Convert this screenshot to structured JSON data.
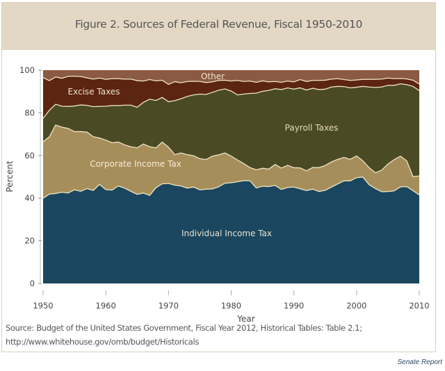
{
  "chart_data": {
    "type": "area",
    "stacked": true,
    "title": "Figure 2. Sources of Federal Revenue, Fiscal 1950-2010",
    "xlabel": "Year",
    "ylabel": "Percent",
    "xlim": [
      1950,
      2010
    ],
    "ylim": [
      0,
      100
    ],
    "xticks": [
      "1950",
      "1960",
      "1970",
      "1980",
      "1990",
      "2000",
      "2010"
    ],
    "yticks": [
      "0",
      "20",
      "40",
      "60",
      "80",
      "100"
    ],
    "grid": false,
    "legend": "inline labels",
    "x": [
      1950,
      1951,
      1952,
      1953,
      1954,
      1955,
      1956,
      1957,
      1958,
      1959,
      1960,
      1961,
      1962,
      1963,
      1964,
      1965,
      1966,
      1967,
      1968,
      1969,
      1970,
      1971,
      1972,
      1973,
      1974,
      1975,
      1976,
      1977,
      1978,
      1979,
      1980,
      1981,
      1982,
      1983,
      1984,
      1985,
      1986,
      1987,
      1988,
      1989,
      1990,
      1991,
      1992,
      1993,
      1994,
      1995,
      1996,
      1997,
      1998,
      1999,
      2000,
      2001,
      2002,
      2003,
      2004,
      2005,
      2006,
      2007,
      2008,
      2009,
      2010
    ],
    "series": [
      {
        "name": "Individual Income Tax",
        "color": "#1b465f",
        "label_color": "#e8e2d0",
        "values": [
          39.9,
          41.9,
          42.2,
          42.8,
          42.4,
          43.9,
          43.2,
          44.5,
          43.6,
          46.4,
          44.0,
          43.8,
          45.7,
          44.7,
          43.2,
          41.8,
          42.4,
          41.3,
          44.9,
          46.7,
          46.9,
          46.1,
          45.7,
          44.7,
          45.2,
          43.9,
          44.2,
          44.3,
          45.3,
          47.0,
          47.2,
          47.7,
          48.2,
          48.1,
          44.8,
          45.6,
          45.4,
          46.0,
          44.1,
          45.0,
          45.2,
          44.4,
          43.6,
          44.2,
          43.1,
          43.7,
          45.2,
          46.7,
          48.1,
          48.1,
          49.6,
          49.9,
          46.3,
          44.5,
          43.0,
          43.1,
          43.4,
          45.3,
          45.4,
          43.5,
          41.5
        ]
      },
      {
        "name": "Corporate Income Tax",
        "color": "#a68e5b",
        "label_color": "#f4ecd6",
        "values": [
          26.5,
          26.9,
          32.1,
          30.5,
          30.3,
          27.3,
          28.0,
          26.5,
          25.2,
          21.8,
          23.2,
          22.2,
          20.6,
          20.3,
          20.9,
          21.8,
          23.0,
          22.8,
          18.7,
          19.6,
          17.0,
          14.3,
          15.5,
          15.7,
          14.7,
          14.6,
          13.9,
          15.4,
          15.0,
          14.2,
          12.5,
          10.2,
          8.0,
          6.2,
          8.5,
          8.4,
          8.2,
          9.8,
          10.0,
          10.4,
          9.1,
          9.8,
          9.2,
          10.2,
          11.2,
          11.6,
          11.8,
          11.5,
          11.0,
          10.1,
          10.2,
          7.6,
          8.0,
          7.4,
          10.1,
          12.9,
          14.7,
          14.4,
          12.1,
          6.6,
          8.9
        ]
      },
      {
        "name": "Payroll Taxes",
        "color": "#4a4a24",
        "label_color": "#e6dcb8",
        "values": [
          11.0,
          12.4,
          9.7,
          9.8,
          10.3,
          12.0,
          12.5,
          12.5,
          14.1,
          14.8,
          15.9,
          17.4,
          17.1,
          18.6,
          19.5,
          19.0,
          19.5,
          22.3,
          22.2,
          20.9,
          21.3,
          25.3,
          25.4,
          27.3,
          28.5,
          30.3,
          30.5,
          29.9,
          30.3,
          30.0,
          30.5,
          30.5,
          32.6,
          34.8,
          35.9,
          36.1,
          36.9,
          35.5,
          36.8,
          36.3,
          36.8,
          37.5,
          37.9,
          37.1,
          36.6,
          35.8,
          35.1,
          34.2,
          33.2,
          33.5,
          32.2,
          34.9,
          37.8,
          40.0,
          39.0,
          36.9,
          34.8,
          33.9,
          35.7,
          42.3,
          40.0
        ]
      },
      {
        "name": "Excise Taxes",
        "color": "#5b2512",
        "label_color": "#f0e2cc",
        "values": [
          19.1,
          13.9,
          12.8,
          13.1,
          14.1,
          14.0,
          13.3,
          12.9,
          12.9,
          13.3,
          12.6,
          12.6,
          12.6,
          12.2,
          12.2,
          12.5,
          10.0,
          9.2,
          9.2,
          8.1,
          8.1,
          8.9,
          7.5,
          7.0,
          6.4,
          5.9,
          5.6,
          4.9,
          4.6,
          4.1,
          4.7,
          6.8,
          5.9,
          5.8,
          5.1,
          4.9,
          4.0,
          3.4,
          3.4,
          3.2,
          3.4,
          3.9,
          4.0,
          3.7,
          4.3,
          4.2,
          3.7,
          3.6,
          3.3,
          3.5,
          3.4,
          3.3,
          3.6,
          3.8,
          3.7,
          3.4,
          3.1,
          2.5,
          2.7,
          2.9,
          3.1
        ]
      },
      {
        "name": "Other",
        "color": "#8a5b42",
        "label_color": "#f0e2cc",
        "values": [
          3.5,
          4.9,
          3.2,
          3.8,
          2.9,
          2.8,
          3.0,
          3.6,
          4.2,
          3.7,
          4.3,
          4.0,
          4.0,
          4.2,
          4.2,
          4.9,
          5.1,
          4.4,
          5.0,
          4.7,
          6.7,
          5.4,
          5.9,
          5.3,
          5.2,
          5.3,
          5.8,
          5.5,
          4.8,
          4.7,
          5.1,
          4.8,
          5.3,
          5.1,
          5.7,
          5.0,
          5.5,
          5.3,
          5.7,
          5.1,
          5.5,
          4.4,
          5.3,
          4.8,
          4.8,
          4.7,
          4.2,
          4.0,
          4.4,
          4.8,
          4.6,
          4.3,
          4.3,
          4.3,
          4.2,
          3.7,
          4.0,
          3.9,
          4.1,
          4.7,
          6.5
        ]
      }
    ],
    "boundary_line_color": "#efe5c6"
  },
  "source": {
    "line1": "Source: Budget of the United States Government, Fiscal Year 2012, Historical Tables: Table 2.1;",
    "line2": "http://www.whitehouse.gov/omb/budget/Historicals"
  },
  "credit": "Senate Report"
}
